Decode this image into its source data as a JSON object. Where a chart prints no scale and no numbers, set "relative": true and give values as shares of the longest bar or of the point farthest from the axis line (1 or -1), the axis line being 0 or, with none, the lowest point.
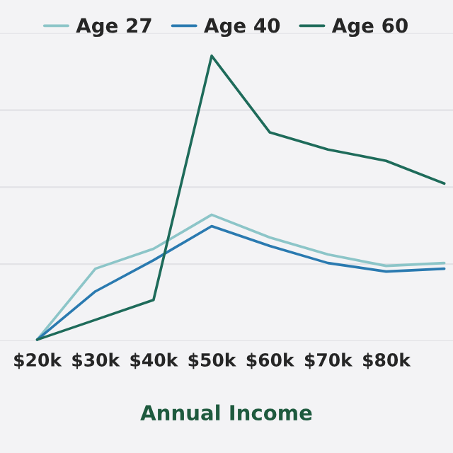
{
  "chart_data": {
    "type": "line",
    "relative": true,
    "xlabel": "Annual Income",
    "grid": "y",
    "legend": "top",
    "categories": [
      "$20k",
      "$30k",
      "$40k",
      "$50k",
      "$60k",
      "$70k",
      "$80k",
      null
    ],
    "series": [
      {
        "name": "Age 27",
        "color": "#8cc5c8",
        "values": [
          0,
          0.25,
          0.32,
          0.44,
          0.36,
          0.3,
          0.26,
          0.27
        ]
      },
      {
        "name": "Age 40",
        "color": "#2a7ab0",
        "values": [
          0,
          0.17,
          0.28,
          0.4,
          0.33,
          0.27,
          0.24,
          0.25
        ]
      },
      {
        "name": "Age 60",
        "color": "#1e6b5a",
        "values": [
          0,
          0.07,
          0.14,
          1,
          0.73,
          0.67,
          0.63,
          0.55
        ]
      }
    ]
  }
}
